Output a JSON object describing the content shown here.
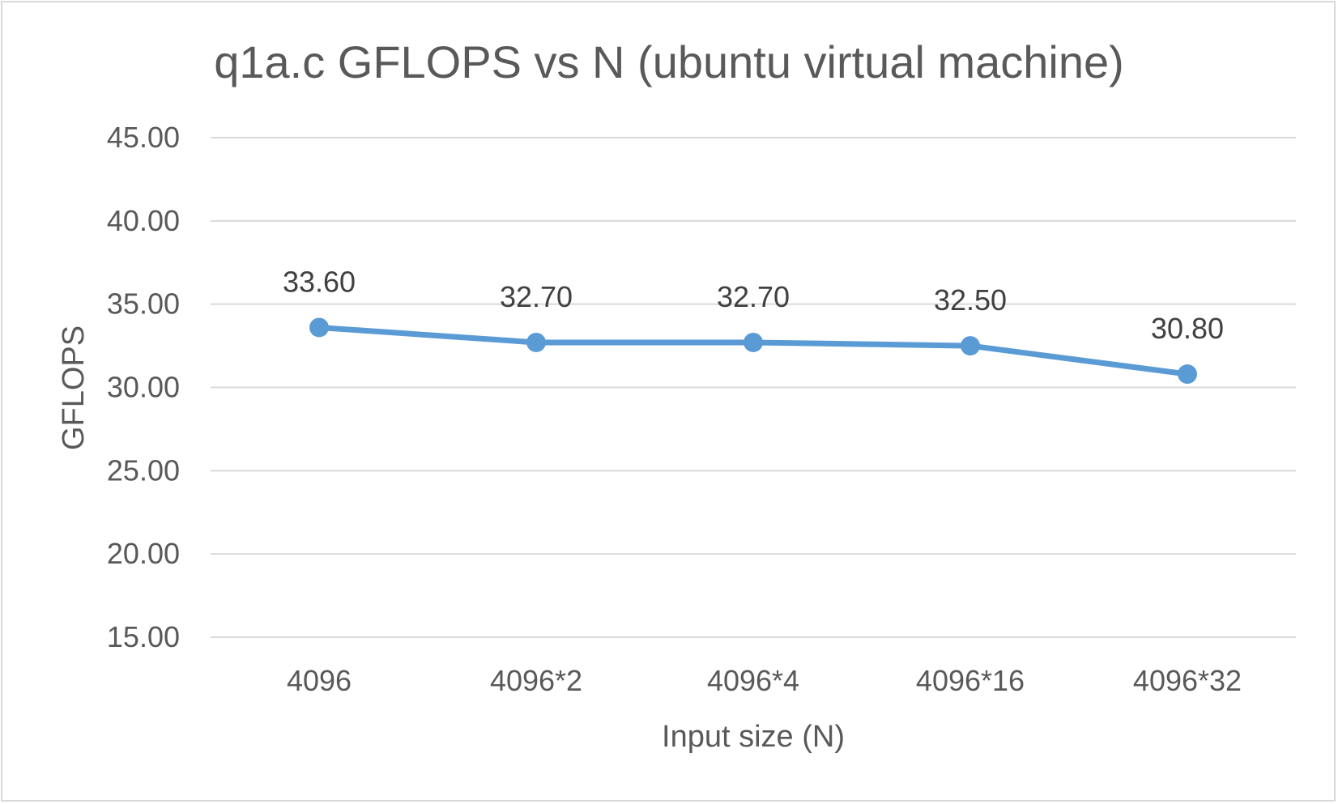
{
  "chart_data": {
    "type": "line",
    "title": "q1a.c GFLOPS vs N (ubuntu virtual machine)",
    "xlabel": "Input size (N)",
    "ylabel": "GFLOPS",
    "categories": [
      "4096",
      "4096*2",
      "4096*4",
      "4096*16",
      "4096*32"
    ],
    "series": [
      {
        "values": [
          33.6,
          32.7,
          32.7,
          32.5,
          30.8
        ],
        "labels": [
          "33.60",
          "32.70",
          "32.70",
          "32.50",
          "30.80"
        ]
      }
    ],
    "ylim": [
      15,
      45
    ],
    "yticks": [
      "15.00",
      "20.00",
      "25.00",
      "30.00",
      "35.00",
      "40.00",
      "45.00"
    ],
    "grid": true,
    "legend": "none",
    "colors": {
      "line": "#5b9bd5",
      "grid": "#d9d9d9",
      "text": "#595959",
      "label": "#404040",
      "border": "#d9d9d9"
    }
  }
}
